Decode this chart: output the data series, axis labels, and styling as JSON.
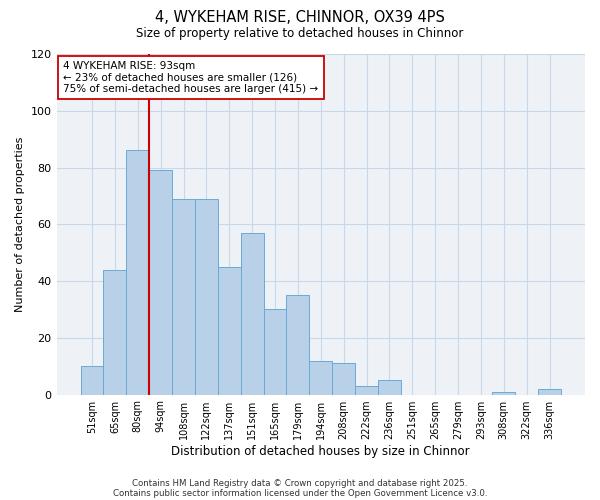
{
  "title": "4, WYKEHAM RISE, CHINNOR, OX39 4PS",
  "subtitle": "Size of property relative to detached houses in Chinnor",
  "xlabel": "Distribution of detached houses by size in Chinnor",
  "ylabel": "Number of detached properties",
  "bar_labels": [
    "51sqm",
    "65sqm",
    "80sqm",
    "94sqm",
    "108sqm",
    "122sqm",
    "137sqm",
    "151sqm",
    "165sqm",
    "179sqm",
    "194sqm",
    "208sqm",
    "222sqm",
    "236sqm",
    "251sqm",
    "265sqm",
    "279sqm",
    "293sqm",
    "308sqm",
    "322sqm",
    "336sqm"
  ],
  "bar_values": [
    10,
    44,
    86,
    79,
    69,
    69,
    45,
    57,
    30,
    35,
    12,
    11,
    3,
    5,
    0,
    0,
    0,
    0,
    1,
    0,
    2
  ],
  "bar_color": "#b8d0e8",
  "bar_edgecolor": "#6aaad4",
  "vline_color": "#cc0000",
  "annotation_title": "4 WYKEHAM RISE: 93sqm",
  "annotation_line1": "← 23% of detached houses are smaller (126)",
  "annotation_line2": "75% of semi-detached houses are larger (415) →",
  "annotation_box_edgecolor": "#cc0000",
  "ylim": [
    0,
    120
  ],
  "yticks": [
    0,
    20,
    40,
    60,
    80,
    100,
    120
  ],
  "footer1": "Contains HM Land Registry data © Crown copyright and database right 2025.",
  "footer2": "Contains public sector information licensed under the Open Government Licence v3.0.",
  "bg_color": "#eef2f7",
  "grid_color": "#c8d8e8"
}
